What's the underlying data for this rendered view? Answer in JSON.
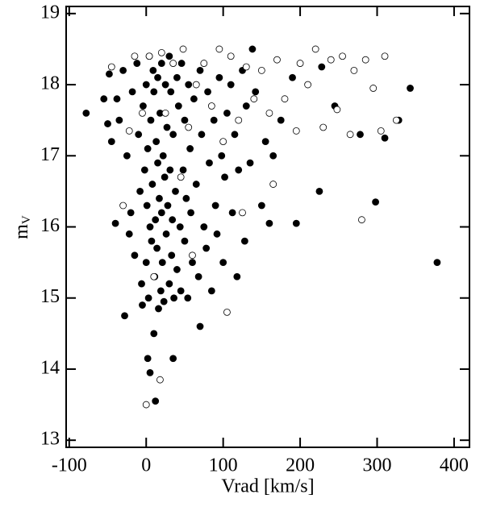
{
  "chart_data": {
    "type": "scatter",
    "xlabel": "Vrad [km/s]",
    "ylabel": {
      "main": "m",
      "sub": "V"
    },
    "xlim": [
      -104,
      420
    ],
    "ylim": [
      12.9,
      19.1
    ],
    "xticks": [
      -100,
      0,
      100,
      200,
      300,
      400
    ],
    "yticks": [
      13,
      14,
      15,
      16,
      17,
      18,
      19
    ],
    "series": [
      {
        "marker": "filled",
        "color": "#000000",
        "x": [
          -78,
          -55,
          -50,
          -48,
          -45,
          -40,
          -38,
          -35,
          -30,
          -28,
          -25,
          -22,
          -20,
          -18,
          -15,
          -12,
          -10,
          -8,
          -6,
          -5,
          -4,
          -2,
          0,
          0,
          1,
          2,
          2,
          3,
          4,
          5,
          5,
          6,
          7,
          8,
          9,
          10,
          10,
          11,
          12,
          12,
          13,
          14,
          15,
          15,
          16,
          17,
          18,
          19,
          20,
          20,
          21,
          22,
          23,
          24,
          25,
          26,
          27,
          28,
          30,
          30,
          31,
          32,
          33,
          34,
          35,
          35,
          36,
          38,
          40,
          40,
          42,
          44,
          45,
          46,
          48,
          50,
          50,
          52,
          54,
          55,
          57,
          58,
          60,
          62,
          65,
          68,
          70,
          70,
          72,
          75,
          78,
          80,
          82,
          85,
          88,
          90,
          92,
          95,
          98,
          100,
          102,
          105,
          110,
          112,
          115,
          118,
          120,
          125,
          128,
          130,
          135,
          138,
          142,
          150,
          155,
          160,
          165,
          175,
          190,
          195,
          225,
          228,
          245,
          278,
          298,
          310,
          328,
          343,
          378
        ],
        "values": [
          17.6,
          17.8,
          17.45,
          18.15,
          17.2,
          16.05,
          17.8,
          17.5,
          18.2,
          14.75,
          17.0,
          15.9,
          16.2,
          17.9,
          15.6,
          18.3,
          17.3,
          16.5,
          15.2,
          14.9,
          17.7,
          16.8,
          18.0,
          15.5,
          16.3,
          14.15,
          17.1,
          15.0,
          18.4,
          16.0,
          13.95,
          17.5,
          15.8,
          16.6,
          18.2,
          14.5,
          17.9,
          15.3,
          16.1,
          13.55,
          17.2,
          15.7,
          18.1,
          16.9,
          14.85,
          16.4,
          17.6,
          15.1,
          18.3,
          16.2,
          15.5,
          17.0,
          14.95,
          16.7,
          18.0,
          15.9,
          17.4,
          16.3,
          15.2,
          18.4,
          16.8,
          17.9,
          15.6,
          16.1,
          14.15,
          17.3,
          15.0,
          16.5,
          18.1,
          15.4,
          17.7,
          16.0,
          15.1,
          18.3,
          16.8,
          17.5,
          15.8,
          16.4,
          15.0,
          18.0,
          17.1,
          16.2,
          15.5,
          17.8,
          16.6,
          15.3,
          14.6,
          18.2,
          17.3,
          16.0,
          15.7,
          17.9,
          16.9,
          15.1,
          17.5,
          16.3,
          15.9,
          18.1,
          17.0,
          15.5,
          16.7,
          17.6,
          18.0,
          16.2,
          17.3,
          15.3,
          16.8,
          18.2,
          15.8,
          17.7,
          16.9,
          18.5,
          17.9,
          16.3,
          17.2,
          16.05,
          17.0,
          17.5,
          18.1,
          16.05,
          16.5,
          18.25,
          17.7,
          17.3,
          16.35,
          17.25,
          17.5,
          17.95,
          15.5
        ]
      },
      {
        "marker": "open",
        "color": "#000000",
        "x": [
          -45,
          -30,
          -22,
          -15,
          -5,
          0,
          4,
          10,
          18,
          20,
          25,
          35,
          45,
          48,
          55,
          60,
          65,
          75,
          85,
          95,
          100,
          105,
          110,
          120,
          125,
          130,
          140,
          150,
          160,
          165,
          170,
          180,
          195,
          200,
          210,
          220,
          230,
          240,
          248,
          255,
          265,
          270,
          280,
          285,
          295,
          305,
          310,
          325
        ],
        "values": [
          18.25,
          16.3,
          17.35,
          18.4,
          17.6,
          13.5,
          18.4,
          15.3,
          13.85,
          18.45,
          17.6,
          18.3,
          16.7,
          18.5,
          17.4,
          15.6,
          18.0,
          18.3,
          17.7,
          18.5,
          17.2,
          14.8,
          18.4,
          17.5,
          16.2,
          18.25,
          17.8,
          18.2,
          17.6,
          16.6,
          18.35,
          17.8,
          17.35,
          18.3,
          18.0,
          18.5,
          17.4,
          18.35,
          17.65,
          18.4,
          17.3,
          18.2,
          16.1,
          18.35,
          17.95,
          17.35,
          18.4,
          17.5
        ]
      }
    ]
  }
}
